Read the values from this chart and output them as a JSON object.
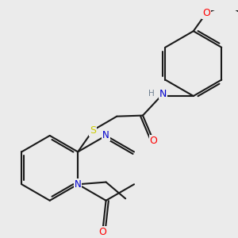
{
  "bg_color": "#ebebeb",
  "atom_colors": {
    "N": "#0000cd",
    "O": "#ff0000",
    "S": "#cccc00",
    "C": "#1a1a1a",
    "H": "#708090"
  },
  "bond_color": "#1a1a1a",
  "bond_width": 1.5,
  "dbo": 0.05,
  "fontsize": 8.5
}
